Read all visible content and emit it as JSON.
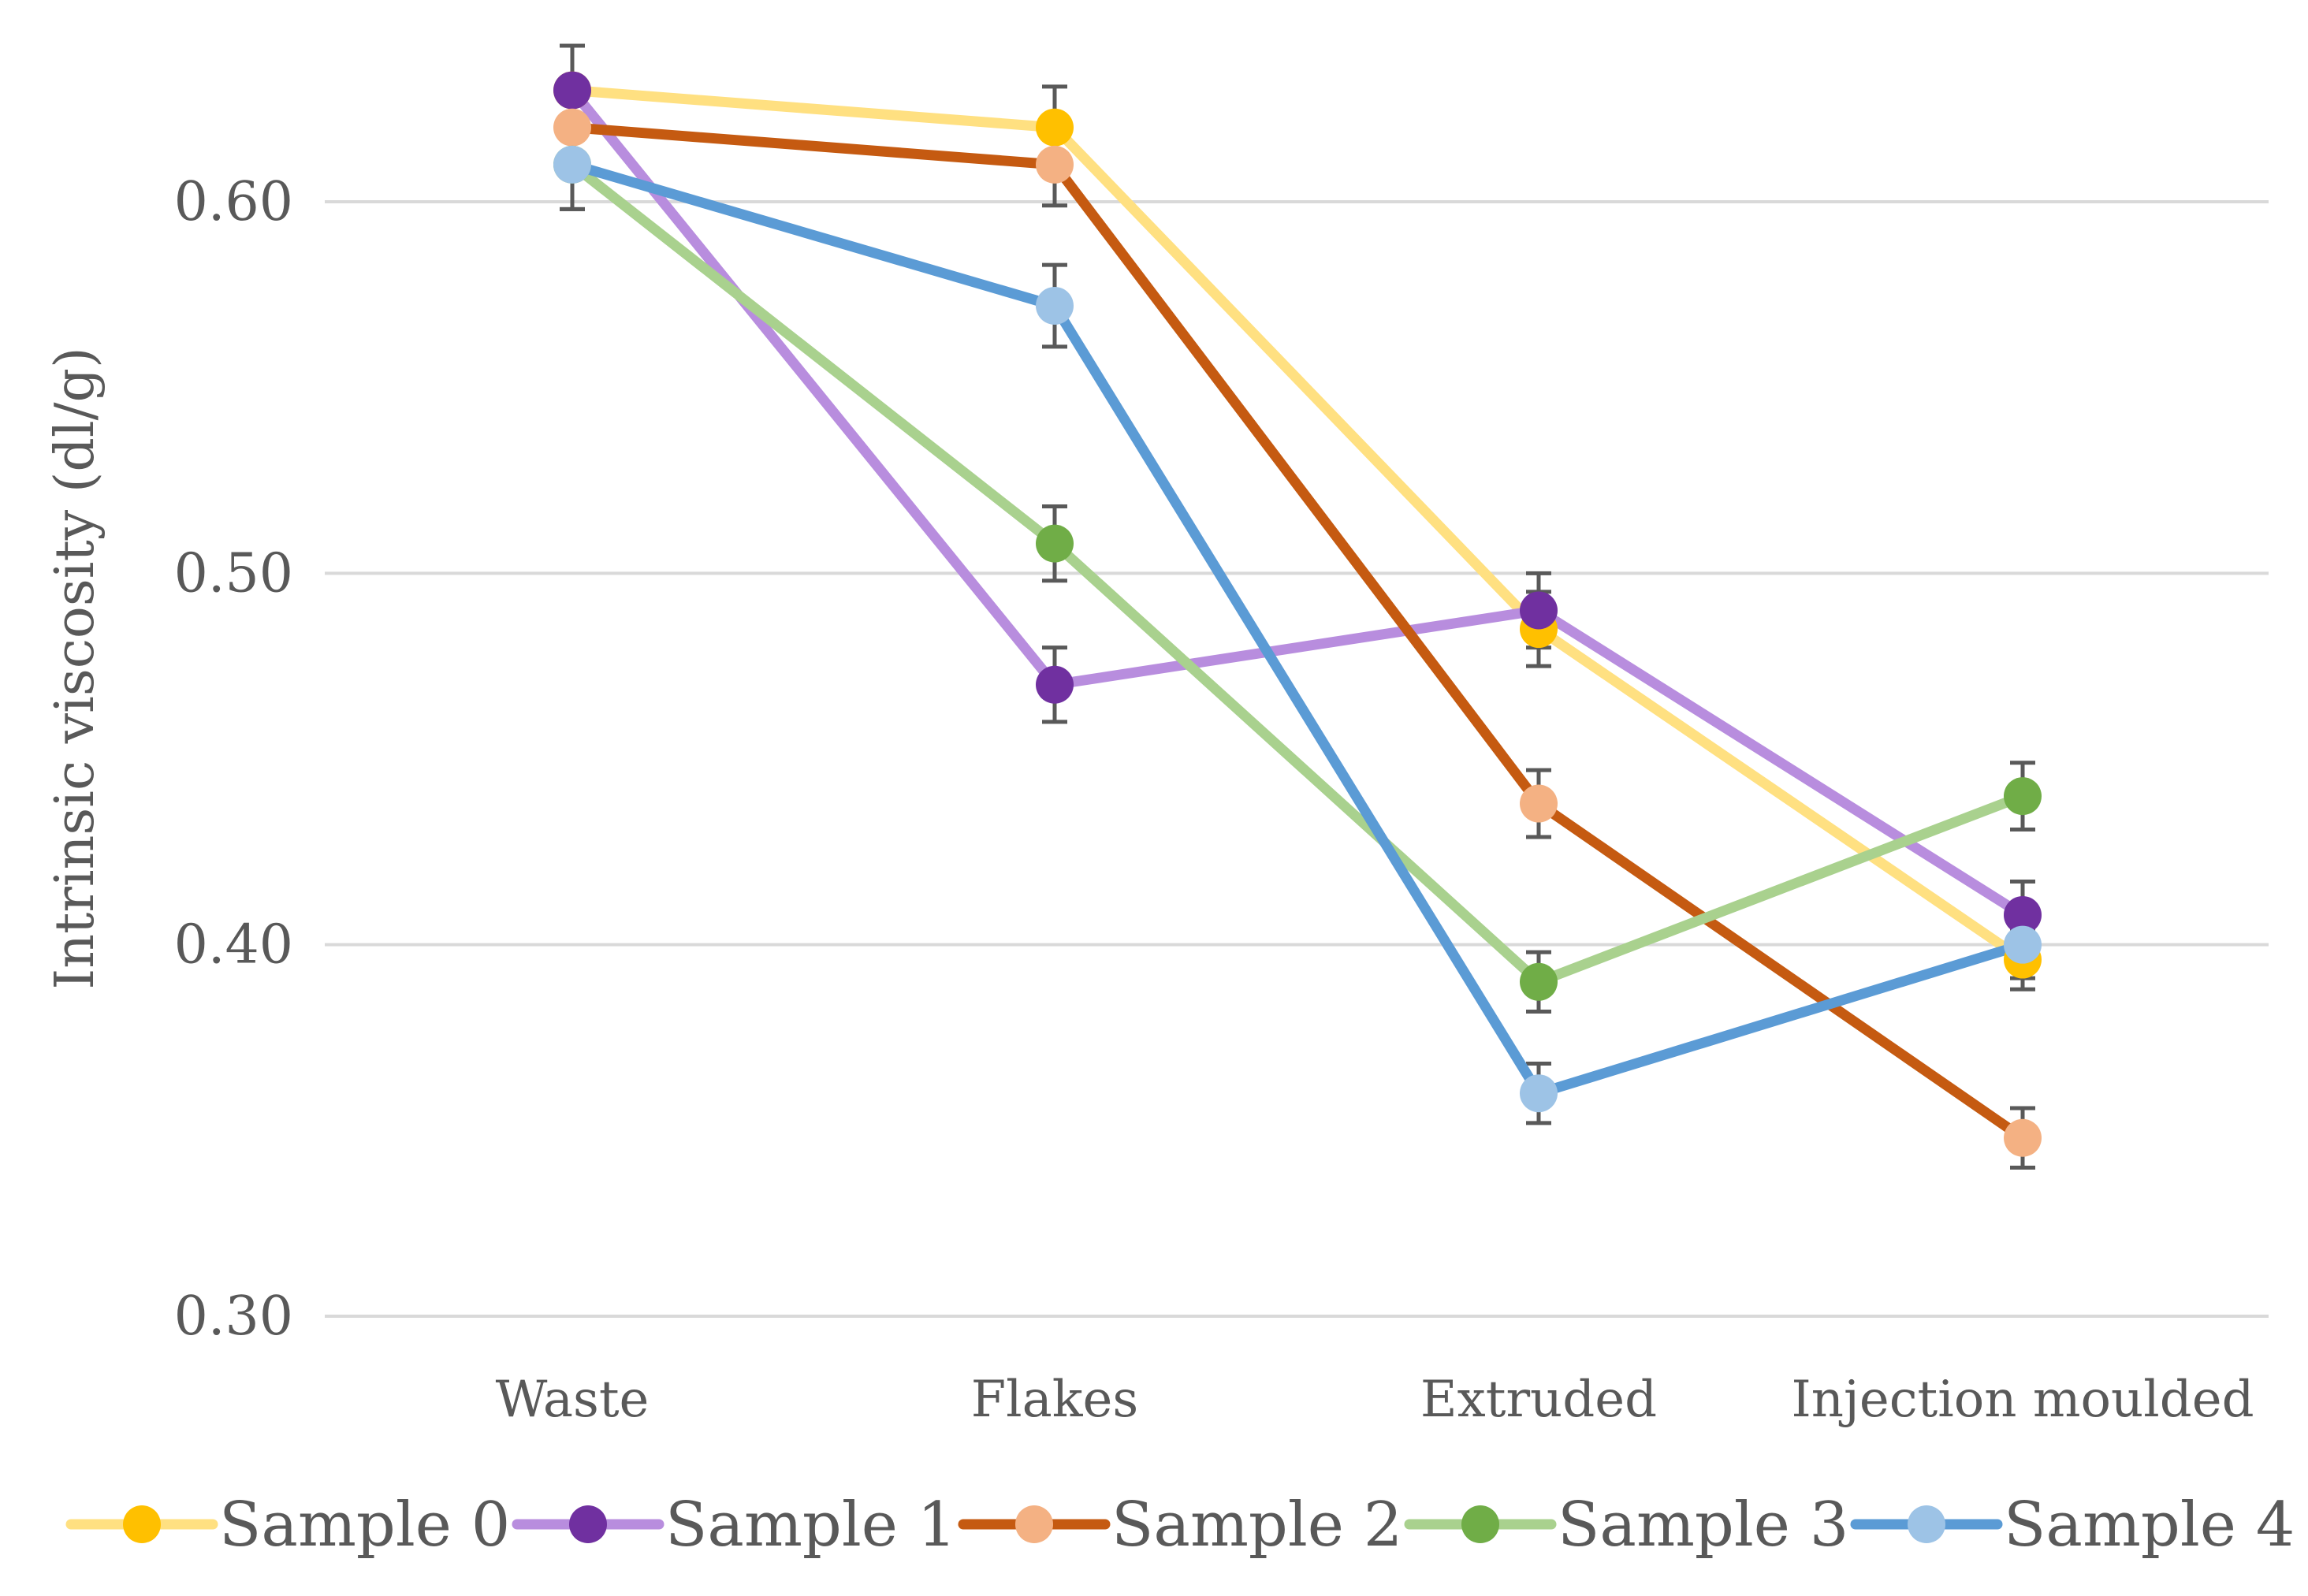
{
  "chart_data": {
    "type": "line",
    "title": "",
    "xlabel": "",
    "ylabel": "Intrinsic viscosity (dl/g)",
    "ylim": [
      0.3,
      0.65
    ],
    "yticks": [
      0.3,
      0.4,
      0.5,
      0.6
    ],
    "ytick_labels": [
      "0.30",
      "0.40",
      "0.50",
      "0.60"
    ],
    "grid": true,
    "legend_position": "bottom",
    "categories": [
      "Waste",
      "Flakes",
      "Extruded",
      "Injection moulded"
    ],
    "series": [
      {
        "name": "Sample 0",
        "values": [
          0.63,
          0.62,
          0.485,
          0.396
        ],
        "error": [
          0.012,
          0.011,
          0.01,
          0.008
        ],
        "marker_color": "#FFC000",
        "line_color": "#FFE081"
      },
      {
        "name": "Sample 1",
        "values": [
          0.63,
          0.47,
          0.49,
          0.408
        ],
        "error": [
          0.012,
          0.01,
          0.01,
          0.009
        ],
        "marker_color": "#7030A0",
        "line_color": "#B88DDE"
      },
      {
        "name": "Sample 2",
        "values": [
          0.62,
          0.61,
          0.438,
          0.348
        ],
        "error": [
          0.012,
          0.011,
          0.009,
          0.008
        ],
        "marker_color": "#F4B183",
        "line_color": "#C55A11"
      },
      {
        "name": "Sample 3",
        "values": [
          0.61,
          0.508,
          0.39,
          0.44
        ],
        "error": [
          0.012,
          0.01,
          0.008,
          0.009
        ],
        "marker_color": "#70AD47",
        "line_color": "#A9D18E"
      },
      {
        "name": "Sample 4",
        "values": [
          0.61,
          0.572,
          0.36,
          0.4
        ],
        "error": [
          0.012,
          0.011,
          0.008,
          0.009
        ],
        "marker_color": "#9DC3E6",
        "line_color": "#5B9BD5"
      }
    ]
  }
}
